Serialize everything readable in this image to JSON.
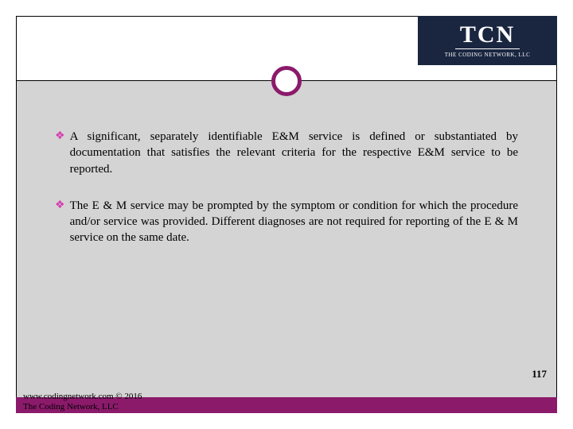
{
  "logo": {
    "main": "TCN",
    "sub": "THE CODING NETWORK, LLC"
  },
  "colors": {
    "accent": "#8b1a6b",
    "bullet": "#d63cb0",
    "logo_bg": "#1a2640",
    "content_bg": "#d4d4d4"
  },
  "bullets": [
    {
      "text": "A significant, separately identifiable E&M service is defined or substantiated by documentation that satisfies the relevant criteria for the respective E&M service to be reported."
    },
    {
      "text": "The E & M service may be prompted by the symptom or condition for which the procedure and/or service was provided. Different diagnoses are not required for reporting of the E & M service on the same date."
    }
  ],
  "page_number": "117",
  "footer": {
    "line1": "www.codingnetwork.com © 2016",
    "line2": "The Coding Network, LLC"
  }
}
